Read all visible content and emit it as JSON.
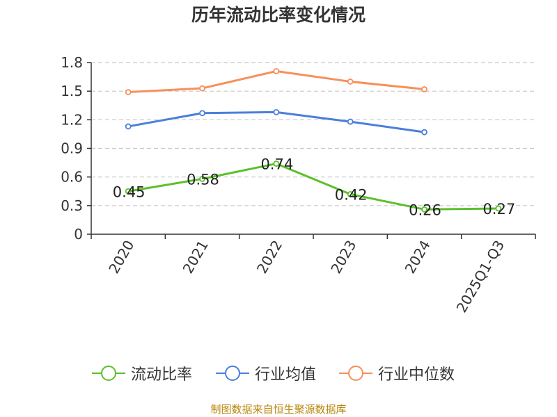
{
  "chart_data": {
    "type": "line",
    "title": "历年流动比率变化情况",
    "categories": [
      "2020",
      "2021",
      "2022",
      "2023",
      "2024",
      "2025Q1-Q3"
    ],
    "ylim": [
      0,
      1.8
    ],
    "yticks": [
      "0",
      "0.3",
      "0.6",
      "0.9",
      "1.2",
      "1.5",
      "1.8"
    ],
    "grid": true,
    "legend_position": "bottom",
    "series": [
      {
        "name": "流动比率",
        "color": "#5cbf2a",
        "values": [
          0.45,
          0.58,
          0.74,
          0.42,
          0.26,
          0.27
        ],
        "labels": [
          "0.45",
          "0.58",
          "0.74",
          "0.42",
          "0.26",
          "0.27"
        ]
      },
      {
        "name": "行业均值",
        "color": "#4a7fdc",
        "values": [
          1.13,
          1.27,
          1.28,
          1.18,
          1.07,
          null
        ]
      },
      {
        "name": "行业中位数",
        "color": "#f7905a",
        "values": [
          1.49,
          1.53,
          1.71,
          1.6,
          1.52,
          null
        ]
      }
    ]
  },
  "source": "制图数据来自恒生聚源数据库"
}
